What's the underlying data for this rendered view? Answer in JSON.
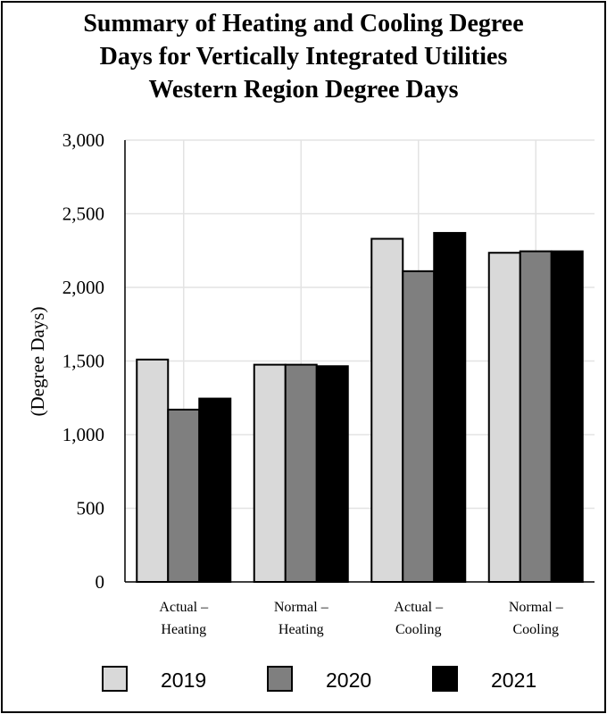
{
  "chart_data": {
    "type": "bar",
    "title_lines": [
      "Summary of Heating and Cooling Degree",
      "Days for Vertically Integrated Utilities",
      "Western Region Degree Days"
    ],
    "ylabel": "(Degree Days)",
    "xlabel": "",
    "ylim": [
      0,
      3000
    ],
    "yticks": [
      0,
      500,
      1000,
      1500,
      2000,
      2500,
      3000
    ],
    "ytick_labels": [
      "0",
      "500",
      "1,000",
      "1,500",
      "2,000",
      "2,500",
      "3,000"
    ],
    "categories": [
      [
        "Actual –",
        "Heating"
      ],
      [
        "Normal –",
        "Heating"
      ],
      [
        "Actual –",
        "Cooling"
      ],
      [
        "Normal –",
        "Cooling"
      ]
    ],
    "series": [
      {
        "name": "2019",
        "color": "#d9d9d9",
        "values": [
          1510,
          1475,
          2330,
          2235
        ]
      },
      {
        "name": "2020",
        "color": "#7f7f7f",
        "values": [
          1170,
          1475,
          2110,
          2245
        ]
      },
      {
        "name": "2021",
        "color": "#000000",
        "values": [
          1245,
          1465,
          2370,
          2245
        ]
      }
    ],
    "grid": true,
    "legend_position": "bottom"
  }
}
